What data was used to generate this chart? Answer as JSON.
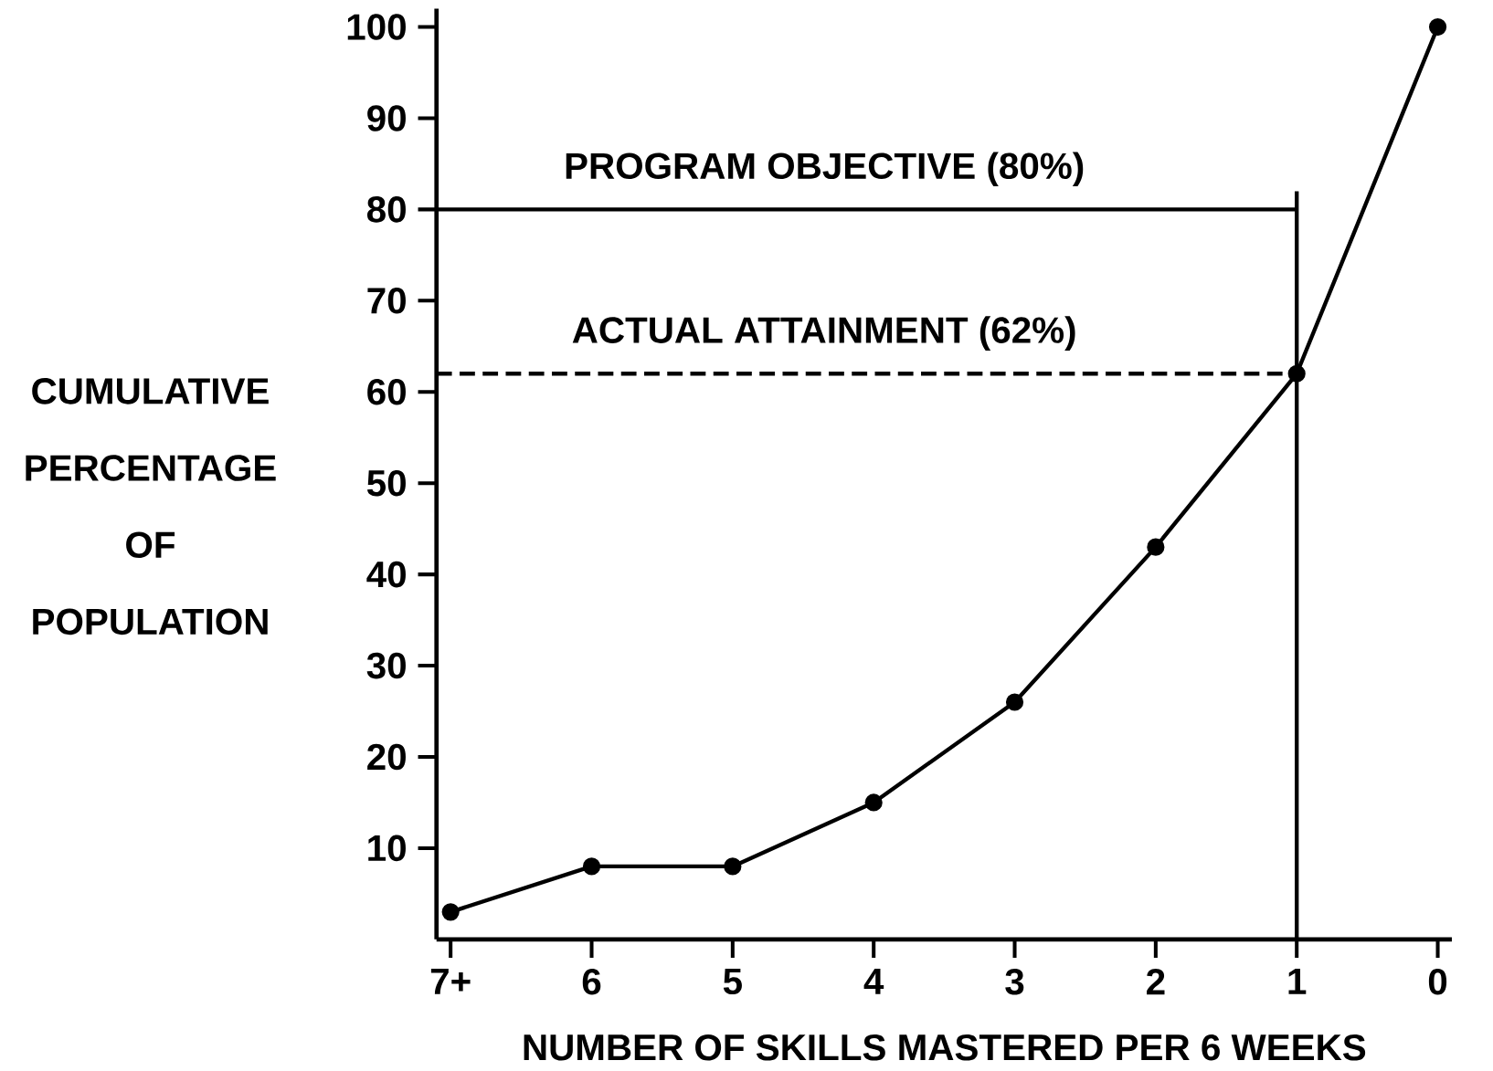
{
  "chart_data": {
    "type": "line",
    "xlabel": "NUMBER OF SKILLS MASTERED PER 6 WEEKS",
    "ylabel": "CUMULATIVE PERCENTAGE OF POPULATION",
    "x": [
      7,
      6,
      5,
      4,
      3,
      2,
      1,
      0
    ],
    "series": [
      {
        "color": "#000000",
        "values": [
          3,
          8,
          8,
          15,
          26,
          43,
          62,
          100
        ]
      }
    ],
    "xlim": [
      7.1,
      -0.1
    ],
    "xticks": [
      {
        "value": 7,
        "label": "7+"
      },
      6,
      5,
      4,
      3,
      2,
      1,
      0
    ],
    "ylim": [
      0,
      102
    ],
    "yticks": [
      10,
      20,
      30,
      40,
      50,
      60,
      70,
      80,
      90,
      100
    ],
    "ref_lines": [
      {
        "axis": "y",
        "value": 80,
        "label": "PROGRAM OBJECTIVE (80%)",
        "line_style": "solid"
      },
      {
        "axis": "y",
        "value": 62,
        "label": "ACTUAL ATTAINMENT (62%)",
        "line_style": "dashed"
      },
      {
        "axis": "x",
        "value": 1,
        "line_style": "solid"
      }
    ],
    "marker": "circle"
  }
}
